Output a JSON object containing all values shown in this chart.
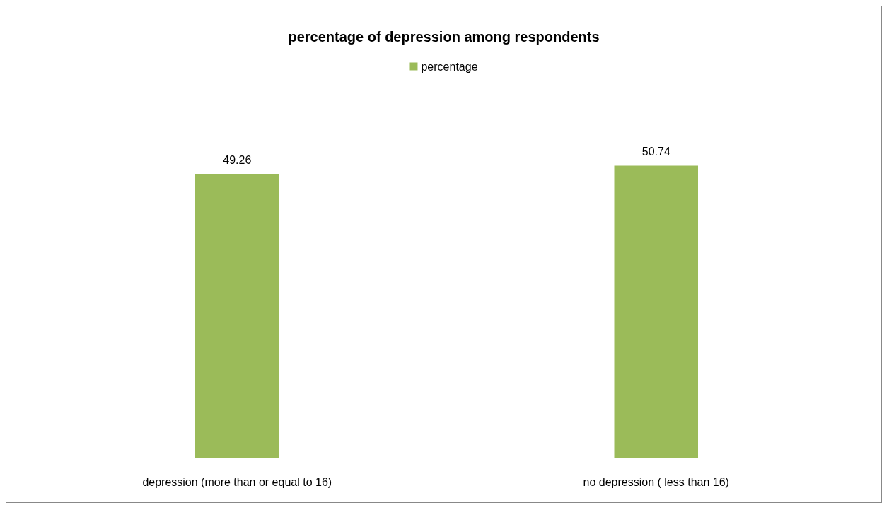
{
  "chart_data": {
    "type": "bar",
    "title": "percentage of depression among respondents",
    "categories": [
      "depression (more than or equal to 16)",
      "no depression ( less than 16)"
    ],
    "series": [
      {
        "name": "percentage",
        "color": "#9bbb59",
        "values": [
          49.26,
          50.74
        ]
      }
    ],
    "tick_labels": "x",
    "data_labels": true,
    "legend": "top"
  }
}
